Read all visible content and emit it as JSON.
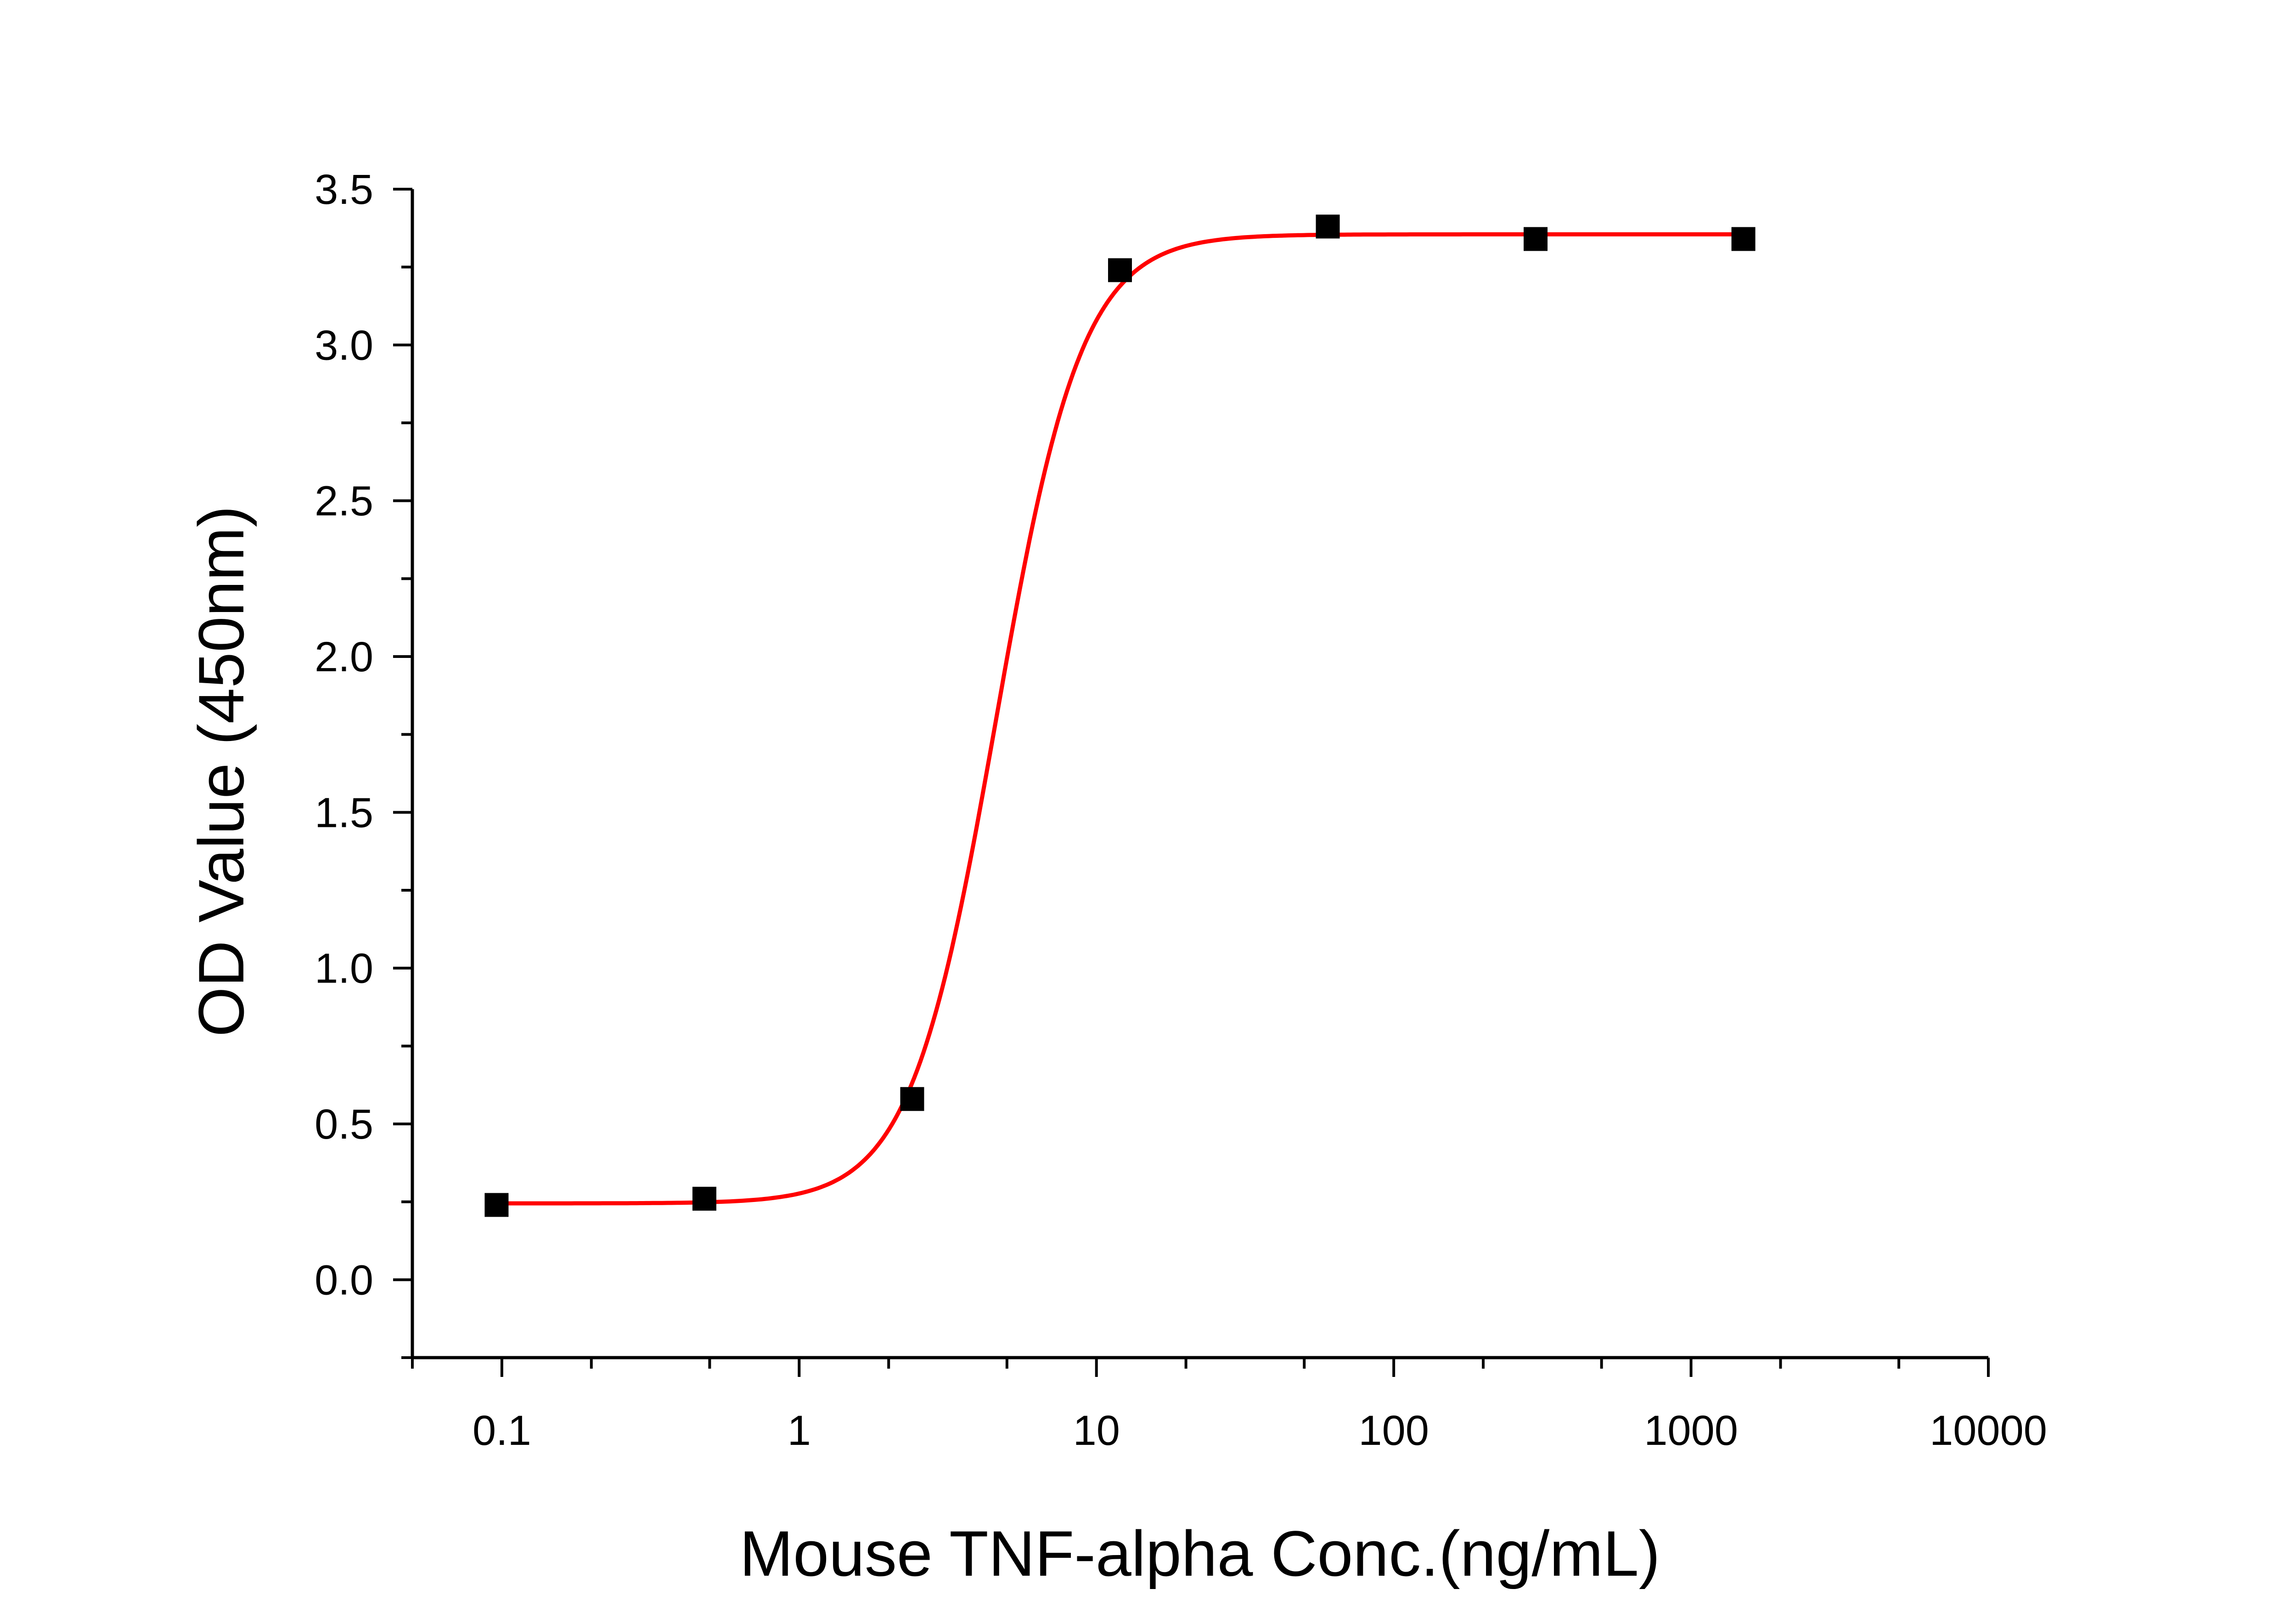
{
  "chart_data": {
    "type": "scatter",
    "xlabel": "Mouse TNF-alpha Conc.(ng/mL)",
    "ylabel": "OD Value (450nm)",
    "x_scale": "log",
    "xlim": [
      0.05,
      10000
    ],
    "ylim": [
      -0.25,
      3.5
    ],
    "x_ticks": [
      0.1,
      1,
      10,
      100,
      1000,
      10000
    ],
    "x_tick_labels": [
      "0.1",
      "1",
      "10",
      "100",
      "1000",
      "10000"
    ],
    "y_ticks": [
      0.0,
      0.5,
      1.0,
      1.5,
      2.0,
      2.5,
      3.0,
      3.5
    ],
    "y_tick_labels": [
      "0.0",
      "0.5",
      "1.0",
      "1.5",
      "2.0",
      "2.5",
      "3.0",
      "3.5"
    ],
    "grid": false,
    "points": [
      {
        "x": 0.096,
        "y": 0.24
      },
      {
        "x": 0.48,
        "y": 0.26
      },
      {
        "x": 2.4,
        "y": 0.58
      },
      {
        "x": 12,
        "y": 3.24
      },
      {
        "x": 60,
        "y": 3.38
      },
      {
        "x": 300,
        "y": 3.34
      },
      {
        "x": 1500,
        "y": 3.34
      }
    ],
    "fit": {
      "model": "4PL",
      "bottom": 0.245,
      "top": 3.355,
      "ec50": 4.6,
      "hill": 3.0,
      "x_range": [
        0.096,
        1500
      ],
      "color": "#ff0000"
    },
    "marker_color": "#000000"
  }
}
